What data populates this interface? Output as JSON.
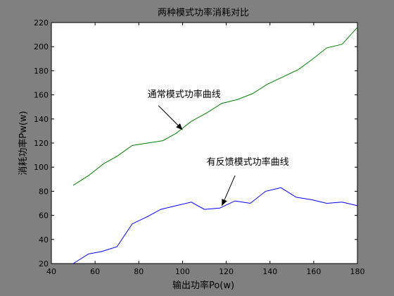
{
  "chart_data": {
    "type": "line",
    "title": "两种模式功率消耗对比",
    "xlabel": "输出功率Po(w)",
    "ylabel": "消耗功率Pw(w)",
    "xlim": [
      40,
      180
    ],
    "ylim": [
      20,
      220
    ],
    "xticks": [
      40,
      60,
      80,
      100,
      120,
      140,
      160,
      180
    ],
    "yticks": [
      20,
      40,
      60,
      80,
      100,
      120,
      140,
      160,
      180,
      200,
      220
    ],
    "grid": false,
    "colors": {
      "figure_background": "#808080",
      "axes_background": "#ffffff",
      "axes_edge": "#000000",
      "normal_series": "#008000",
      "feedback_series": "#0000ff",
      "annotation_arrow": "#000000"
    },
    "series": [
      {
        "name": "通常模式功率曲线",
        "color": "#008000",
        "x": [
          50,
          57,
          64,
          70,
          77,
          84,
          91,
          97,
          104,
          111,
          118,
          125,
          132,
          139,
          146,
          153,
          159,
          166,
          173,
          180
        ],
        "y": [
          85,
          93,
          103,
          109,
          118,
          120,
          122,
          128,
          138,
          145,
          153,
          156,
          161,
          169,
          175,
          181,
          189,
          199,
          202,
          216
        ]
      },
      {
        "name": "有反馈模式功率曲线",
        "color": "#0000ff",
        "x": [
          50,
          57,
          63,
          70,
          77,
          84,
          90,
          97,
          104,
          110,
          117,
          124,
          131,
          138,
          145,
          152,
          159,
          166,
          173,
          180
        ],
        "y": [
          20,
          28,
          30,
          34,
          53,
          59,
          65,
          68,
          71,
          65,
          66,
          72,
          70,
          80,
          83,
          75,
          73,
          70,
          71,
          68
        ]
      }
    ],
    "annotations": [
      {
        "text": "通常模式功率曲线",
        "series": "通常模式功率曲线",
        "text_pos": [
          84,
          158
        ],
        "arrow_from": [
          89,
          151
        ],
        "arrow_to": [
          100,
          131
        ]
      },
      {
        "text": "有反馈模式功率曲线",
        "series": "有反馈模式功率曲线",
        "text_pos": [
          111,
          102
        ],
        "arrow_from": [
          124,
          93
        ],
        "arrow_to": [
          118,
          68
        ]
      }
    ]
  }
}
